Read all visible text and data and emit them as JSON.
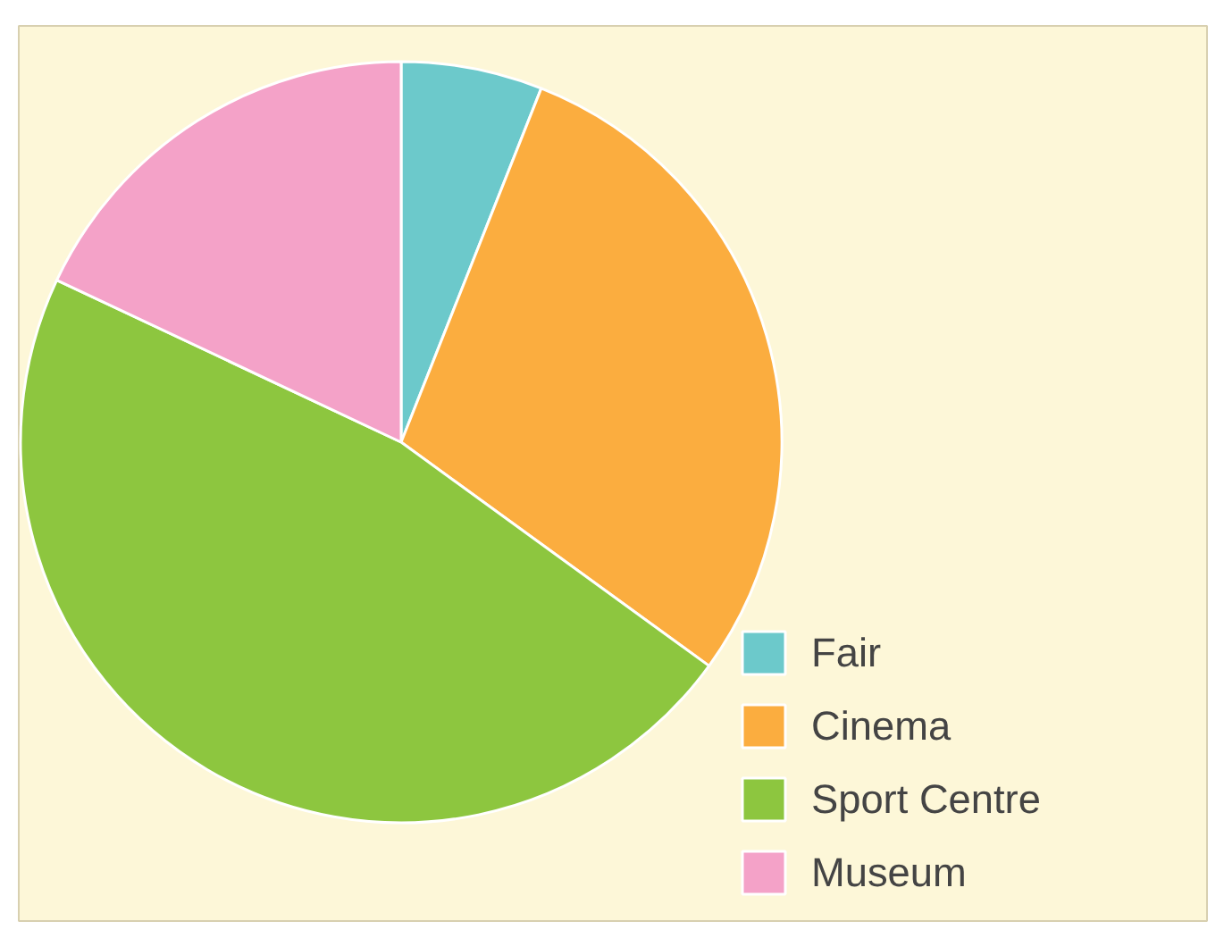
{
  "chart_data": {
    "type": "pie",
    "categories": [
      "Fair",
      "Cinema",
      "Sport Centre",
      "Museum"
    ],
    "values": [
      6,
      29,
      47,
      18
    ],
    "colors": [
      "#6cc9cb",
      "#fbad3f",
      "#8dc63f",
      "#f4a2c8"
    ],
    "legend": "bottom right"
  }
}
